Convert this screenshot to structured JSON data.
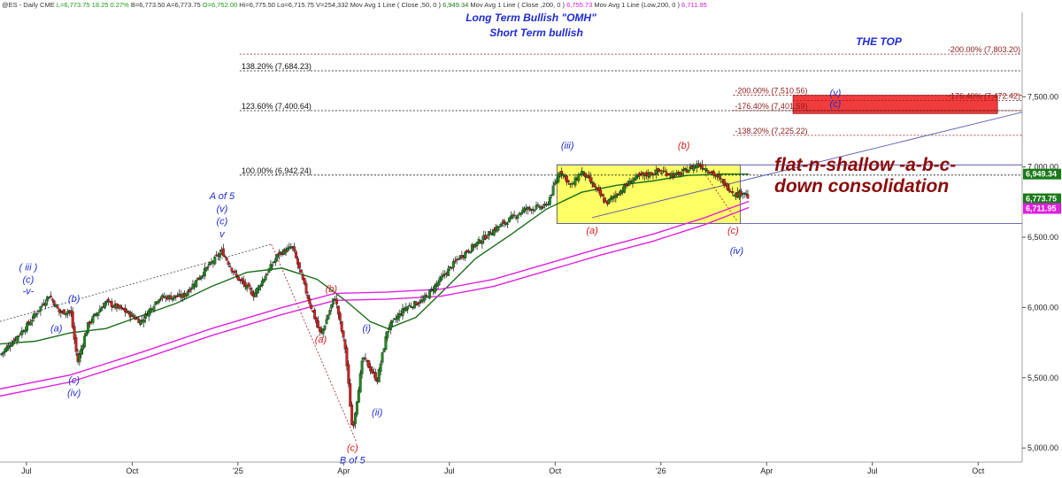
{
  "header": {
    "parts": [
      {
        "text": "@ES - Daily  CME",
        "color": "#333333"
      },
      {
        "text": "L=6,773.75",
        "color": "#1a9a1a"
      },
      {
        "text": "18.25",
        "color": "#1a9a1a"
      },
      {
        "text": "0.27%",
        "color": "#1a9a1a"
      },
      {
        "text": "B=6,773.50",
        "color": "#333333"
      },
      {
        "text": "A=6,773.75",
        "color": "#333333"
      },
      {
        "text": "O=6,752.00",
        "color": "#1a9a1a"
      },
      {
        "text": "Hi=6,775.50",
        "color": "#333333"
      },
      {
        "text": "Lo=6,715.75",
        "color": "#333333"
      },
      {
        "text": "V=254,332",
        "color": "#333333"
      },
      {
        "text": "Mov Avg 1 Line ( Close ,50, 0 )",
        "color": "#333333"
      },
      {
        "text": "6,949.34",
        "color": "#1a7a1a"
      },
      {
        "text": "Mov Avg 1 Line ( Close ,200, 0 )",
        "color": "#333333"
      },
      {
        "text": "6,755.73",
        "color": "#d119d1"
      },
      {
        "text": "Mov Avg 1 Line (Low,200, 0 )",
        "color": "#333333"
      },
      {
        "text": "6,711.95",
        "color": "#d119d1"
      }
    ]
  },
  "titles": {
    "long_term": "Long Term Bullish \"OMH\"",
    "short_term": "Short Term bullish",
    "the_top": "THE TOP",
    "consolidation_line1": "flat-n-shallow -a-b-c-",
    "consolidation_line2": "down consolidation"
  },
  "chart_data": {
    "type": "candlestick",
    "symbol": "@ES - Daily CME",
    "last": 6773.75,
    "ylim": [
      4900,
      8100
    ],
    "y_ticks": [
      5000,
      5500,
      6000,
      6500,
      7000,
      7500
    ],
    "y_tick_labels": [
      "5,000.00",
      "5,500.00",
      "6,000.00",
      "6,500.00",
      "7,000.00",
      "7,500.00"
    ],
    "x_ticks": [
      {
        "label": "Jul",
        "t": 0.25
      },
      {
        "label": "Oct",
        "t": 3.25
      },
      {
        "label": "'25",
        "t": 6.25
      },
      {
        "label": "Apr",
        "t": 9.25
      },
      {
        "label": "Jul",
        "t": 12.25
      },
      {
        "label": "Oct",
        "t": 15.25
      },
      {
        "label": "'26",
        "t": 18.25
      },
      {
        "label": "Apr",
        "t": 21.25
      },
      {
        "label": "Jul",
        "t": 24.25
      },
      {
        "label": "Oct",
        "t": 27.25
      }
    ],
    "xlim": [
      -0.5,
      28.5
    ],
    "price_path": [
      [
        -0.5,
        5660
      ],
      [
        0.3,
        5880
      ],
      [
        0.9,
        6090
      ],
      [
        1.2,
        5960
      ],
      [
        1.5,
        5980
      ],
      [
        1.7,
        5610
      ],
      [
        2.0,
        5880
      ],
      [
        2.5,
        6040
      ],
      [
        3.0,
        5980
      ],
      [
        3.5,
        5900
      ],
      [
        4.0,
        6070
      ],
      [
        4.7,
        6080
      ],
      [
        5.3,
        6260
      ],
      [
        5.8,
        6400
      ],
      [
        6.2,
        6220
      ],
      [
        6.7,
        6090
      ],
      [
        7.4,
        6380
      ],
      [
        7.8,
        6430
      ],
      [
        8.2,
        6100
      ],
      [
        8.6,
        5800
      ],
      [
        9.0,
        6080
      ],
      [
        9.3,
        5700
      ],
      [
        9.5,
        5120
      ],
      [
        9.8,
        5650
      ],
      [
        10.2,
        5480
      ],
      [
        10.5,
        5850
      ],
      [
        11.0,
        6000
      ],
      [
        11.5,
        6050
      ],
      [
        12.0,
        6200
      ],
      [
        12.5,
        6350
      ],
      [
        13.5,
        6550
      ],
      [
        14.4,
        6700
      ],
      [
        15.0,
        6720
      ],
      [
        15.4,
        6980
      ],
      [
        15.7,
        6860
      ],
      [
        16.0,
        6970
      ],
      [
        16.3,
        6880
      ],
      [
        16.7,
        6740
      ],
      [
        17.5,
        6920
      ],
      [
        18.2,
        6970
      ],
      [
        18.7,
        6940
      ],
      [
        19.3,
        7020
      ],
      [
        19.6,
        6980
      ],
      [
        20.0,
        6890
      ],
      [
        20.4,
        6800
      ],
      [
        20.6,
        6830
      ],
      [
        20.75,
        6773.75
      ]
    ],
    "series": [
      {
        "name": "Mov Avg 1 Line ( Close ,50, 0 )",
        "last": 6949.34,
        "color": "#1a6e1a",
        "points": [
          [
            -0.5,
            5740
          ],
          [
            0.5,
            5760
          ],
          [
            1.5,
            5820
          ],
          [
            2.5,
            5850
          ],
          [
            3.5,
            5940
          ],
          [
            4.5,
            6030
          ],
          [
            5.5,
            6150
          ],
          [
            6.5,
            6250
          ],
          [
            7.5,
            6280
          ],
          [
            8.5,
            6200
          ],
          [
            9.3,
            6050
          ],
          [
            10.0,
            5900
          ],
          [
            10.5,
            5850
          ],
          [
            11.3,
            5930
          ],
          [
            12.2,
            6150
          ],
          [
            13.0,
            6350
          ],
          [
            14.0,
            6520
          ],
          [
            15.0,
            6700
          ],
          [
            16.0,
            6820
          ],
          [
            17.0,
            6870
          ],
          [
            18.0,
            6900
          ],
          [
            19.0,
            6940
          ],
          [
            20.0,
            6950
          ],
          [
            20.75,
            6949.34
          ]
        ]
      },
      {
        "name": "Mov Avg 1 Line ( Close ,200, 0 )",
        "last": 6755.73,
        "color": "#e020e0",
        "points": [
          [
            -0.5,
            5420
          ],
          [
            1.5,
            5520
          ],
          [
            3.5,
            5680
          ],
          [
            5.5,
            5850
          ],
          [
            7.5,
            6000
          ],
          [
            9.0,
            6100
          ],
          [
            10.5,
            6110
          ],
          [
            12.0,
            6130
          ],
          [
            13.5,
            6200
          ],
          [
            15.0,
            6310
          ],
          [
            16.5,
            6420
          ],
          [
            18.0,
            6520
          ],
          [
            19.5,
            6640
          ],
          [
            20.75,
            6755.73
          ]
        ]
      },
      {
        "name": "Mov Avg 1 Line (Low,200, 0 )",
        "last": 6711.95,
        "color": "#e020e0",
        "points": [
          [
            -0.5,
            5370
          ],
          [
            1.5,
            5470
          ],
          [
            3.5,
            5630
          ],
          [
            5.5,
            5800
          ],
          [
            7.5,
            5950
          ],
          [
            9.0,
            6050
          ],
          [
            10.5,
            6060
          ],
          [
            12.0,
            6080
          ],
          [
            13.5,
            6150
          ],
          [
            15.0,
            6260
          ],
          [
            16.5,
            6370
          ],
          [
            18.0,
            6470
          ],
          [
            19.5,
            6590
          ],
          [
            20.75,
            6711.95
          ]
        ]
      }
    ],
    "fib_levels": [
      {
        "label": "-200.00% (7,803.20)",
        "value": 7803.2,
        "color": "#8b1a1a",
        "align": "right",
        "t0": 6.3
      },
      {
        "label": "138.20% (7,684.23)",
        "value": 7684.23,
        "color": "#111111",
        "align": "left",
        "t0": 6.3
      },
      {
        "label": "-200.00% (7,510.56)",
        "value": 7510.56,
        "color": "#8b1a1a",
        "align": "left",
        "t0": 20.3
      },
      {
        "label": "-176.40% (7,472.42)",
        "value": 7472.42,
        "color": "#8b1a1a",
        "align": "right",
        "t0": 22.0
      },
      {
        "label": "123.60% (7,400.64)",
        "value": 7400.64,
        "color": "#111111",
        "align": "left",
        "t0": 6.3
      },
      {
        "label": "-176.40% (7,401.59)",
        "value": 7401.59,
        "color": "#8b1a1a",
        "align": "left",
        "t0": 20.3
      },
      {
        "label": "-138.20% (7,225.22)",
        "value": 7225.22,
        "color": "#8b1a1a",
        "align": "left",
        "t0": 20.3
      },
      {
        "label": "100.00% (6,942.24)",
        "value": 6942.24,
        "color": "#111111",
        "align": "left",
        "t0": 6.3
      }
    ],
    "horizontal_lines": [
      {
        "value": 7015,
        "color": "#5a5ab0",
        "t0": 15.3
      },
      {
        "value": 6598,
        "color": "#5a5ab0",
        "t0": 15.3
      }
    ],
    "trendlines": [
      {
        "from": [
          -0.5,
          5900
        ],
        "to": [
          7.2,
          6450
        ],
        "color": "#555555",
        "dash": "2,2"
      },
      {
        "from": [
          7.2,
          6450
        ],
        "to": [
          9.6,
          5050
        ],
        "color": "#b03030",
        "dash": "2,2"
      },
      {
        "from": [
          16.3,
          6640
        ],
        "to": [
          28.5,
          7390
        ],
        "color": "#5a5ab0",
        "dash": ""
      },
      {
        "from": [
          20.4,
          6620
        ],
        "to": [
          19.5,
          6950
        ],
        "color": "#b03030",
        "dash": "2,2"
      }
    ],
    "yellow_box": {
      "t0": 15.3,
      "t1": 20.5,
      "y0": 6598,
      "y1": 7015
    },
    "red_target_box": {
      "t0": 22.0,
      "t1": 27.8,
      "y0": 7380,
      "y1": 7510
    },
    "wave_labels": [
      {
        "text": "( iii )",
        "t": 0.3,
        "v": 6265,
        "color": "blue"
      },
      {
        "text": "(c)",
        "t": 0.3,
        "v": 6175,
        "color": "blue"
      },
      {
        "text": "-v-",
        "t": 0.3,
        "v": 6095,
        "color": "blue"
      },
      {
        "text": "(b)",
        "t": 1.6,
        "v": 6040,
        "color": "blue"
      },
      {
        "text": "(a)",
        "t": 1.1,
        "v": 5830,
        "color": "blue"
      },
      {
        "text": "(c)",
        "t": 1.6,
        "v": 5460,
        "color": "blue"
      },
      {
        "text": "(iv)",
        "t": 1.6,
        "v": 5370,
        "color": "blue"
      },
      {
        "text": "A of 5",
        "t": 5.8,
        "v": 6770,
        "color": "blue"
      },
      {
        "text": "(v)",
        "t": 5.8,
        "v": 6680,
        "color": "blue"
      },
      {
        "text": "(c)",
        "t": 5.8,
        "v": 6590,
        "color": "blue"
      },
      {
        "text": "v",
        "t": 5.8,
        "v": 6500,
        "color": "blue"
      },
      {
        "text": "(b)",
        "t": 8.9,
        "v": 6110,
        "color": "red"
      },
      {
        "text": "(a)",
        "t": 8.6,
        "v": 5750,
        "color": "red"
      },
      {
        "text": "(i)",
        "t": 9.9,
        "v": 5830,
        "color": "blue"
      },
      {
        "text": "(ii)",
        "t": 10.2,
        "v": 5230,
        "color": "blue"
      },
      {
        "text": "(c)",
        "t": 9.5,
        "v": 4980,
        "color": "red"
      },
      {
        "text": "B of 5",
        "t": 9.5,
        "v": 4890,
        "color": "blue"
      },
      {
        "text": "(iii)",
        "t": 15.6,
        "v": 7130,
        "color": "blue"
      },
      {
        "text": "(b)",
        "t": 18.9,
        "v": 7130,
        "color": "red"
      },
      {
        "text": "(a)",
        "t": 16.3,
        "v": 6525,
        "color": "red"
      },
      {
        "text": "(c)",
        "t": 20.3,
        "v": 6525,
        "color": "red"
      },
      {
        "text": "(iv)",
        "t": 20.4,
        "v": 6380,
        "color": "blue"
      },
      {
        "text": "(v)",
        "t": 23.2,
        "v": 7505,
        "color": "blue"
      },
      {
        "text": "(c)",
        "t": 23.2,
        "v": 7425,
        "color": "blue"
      }
    ],
    "price_tags": [
      {
        "text": "6,949.34",
        "value": 6949.34,
        "color": "#1a7a1a"
      },
      {
        "text": "6,773.75",
        "value": 6773.75,
        "color": "#1a7a1a"
      },
      {
        "text": "6,711.95",
        "value": 6711.95,
        "color": "#e020e0"
      }
    ]
  }
}
